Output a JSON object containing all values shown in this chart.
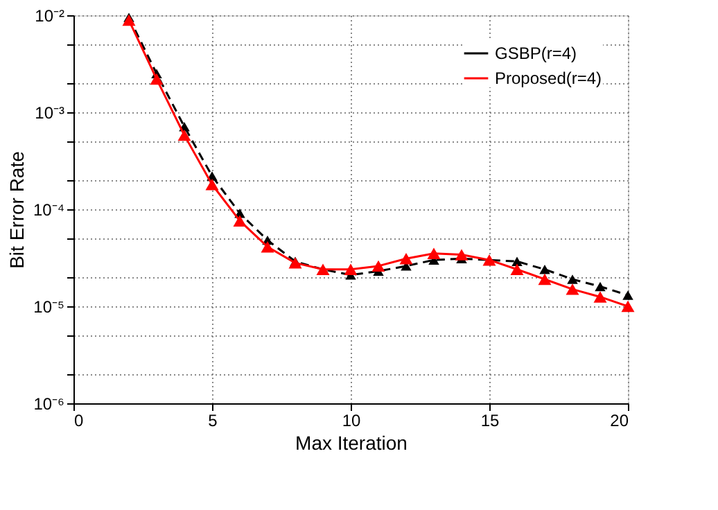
{
  "chart_data": {
    "type": "line",
    "xlabel": "Max Iteration",
    "ylabel": "Bit Error Rate",
    "log": "y",
    "grid": true,
    "legend": "top right",
    "marker": "triangle",
    "x": [
      2,
      3,
      4,
      5,
      6,
      7,
      8,
      9,
      10,
      11,
      12,
      13,
      14,
      15,
      16,
      17,
      18,
      19,
      20
    ],
    "xlim": [
      0,
      20
    ],
    "xticks": [
      0,
      5,
      10,
      15,
      20
    ],
    "ylim": [
      1e-06,
      0.01
    ],
    "yticks": [
      {
        "value": 1e-06,
        "label": "10⁻⁶"
      },
      {
        "value": 2e-06,
        "label": null
      },
      {
        "value": 5e-06,
        "label": null
      },
      {
        "value": 1e-05,
        "label": "10⁻⁵"
      },
      {
        "value": 2e-05,
        "label": null
      },
      {
        "value": 5e-05,
        "label": null
      },
      {
        "value": 0.0001,
        "label": "10⁻⁴"
      },
      {
        "value": 0.0002,
        "label": null
      },
      {
        "value": 0.0005,
        "label": null
      },
      {
        "value": 0.001,
        "label": "10⁻³"
      },
      {
        "value": 0.002,
        "label": null
      },
      {
        "value": 0.005,
        "label": null
      },
      {
        "value": 0.01,
        "label": "10⁻²"
      }
    ],
    "series": [
      {
        "name": "GSBP(r=4)",
        "color": "#000000",
        "line_style": "dashed",
        "values": [
          0.0095,
          0.0025,
          0.00071,
          0.00022,
          9.1e-05,
          4.8e-05,
          2.9e-05,
          2.4e-05,
          2.1e-05,
          2.3e-05,
          2.6e-05,
          3e-05,
          3.1e-05,
          3e-05,
          2.9e-05,
          2.4e-05,
          1.9e-05,
          1.6e-05,
          1.3e-05
        ]
      },
      {
        "name": "Proposed(r=4)",
        "color": "#ff0000",
        "line_style": "solid",
        "values": [
          0.0089,
          0.0022,
          0.00058,
          0.00018,
          7.6e-05,
          4.1e-05,
          2.8e-05,
          2.4e-05,
          2.4e-05,
          2.6e-05,
          3.1e-05,
          3.5e-05,
          3.4e-05,
          3e-05,
          2.4e-05,
          1.9e-05,
          1.5e-05,
          1.25e-05,
          1e-05
        ]
      }
    ]
  }
}
